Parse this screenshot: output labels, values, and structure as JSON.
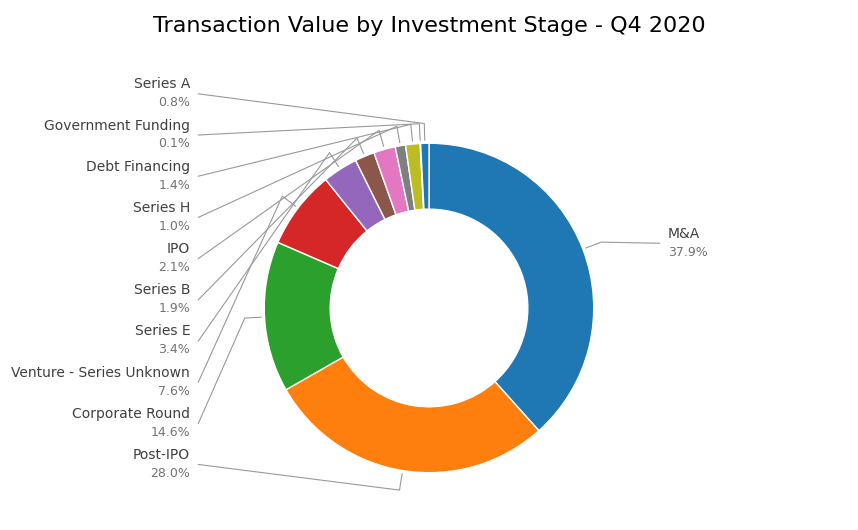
{
  "chart_data": {
    "type": "pie",
    "title": "Transaction Value by Investment Stage - Q4 2020",
    "categories": [
      "M&A",
      "Post-IPO",
      "Corporate Round",
      "Venture - Series Unknown",
      "Series E",
      "Series B",
      "IPO",
      "Series H",
      "Debt Financing",
      "Government Funding",
      "Series A"
    ],
    "values": [
      37.9,
      28.0,
      14.6,
      7.6,
      3.4,
      1.9,
      2.1,
      1.0,
      1.4,
      0.05,
      0.8
    ],
    "value_labels": [
      "37.9%",
      "28.0%",
      "14.6%",
      "7.6%",
      "3.4%",
      "1.9%",
      "2.1%",
      "1.0%",
      "1.4%",
      "0.1%",
      "0.8%"
    ],
    "data_labels": true
  }
}
